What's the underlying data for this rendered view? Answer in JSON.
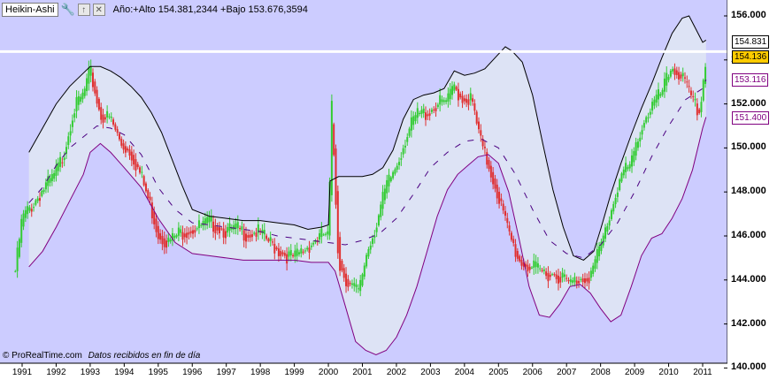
{
  "header": {
    "indicator_name": "Heikin-Ashi",
    "info_text": "Año:+Alto 154.381,2344 +Bajo 153.676,3594"
  },
  "footer": {
    "brand": "© ProRealTime.com",
    "note": "Datos recibidos en fin de día"
  },
  "colors": {
    "plot_background": "#ccccff",
    "band_fill": "#dde3f5",
    "upper_band": "#000000",
    "lower_band": "#800080",
    "middle_band": "#4b0082",
    "candle_up": "#33cc33",
    "candle_down": "#e03030",
    "horizontal_line": "#ffffff",
    "current_price_tag": "#ffcc00"
  },
  "chart_data": {
    "type": "candlestick",
    "title": "Heikin-Ashi",
    "xlabel": "",
    "ylabel": "",
    "x_ticks": [
      "1991",
      "1992",
      "1993",
      "1994",
      "1995",
      "1996",
      "1997",
      "1998",
      "1999",
      "2000",
      "2001",
      "2002",
      "2003",
      "2004",
      "2005",
      "2006",
      "2007",
      "2008",
      "2009",
      "2010",
      "2011"
    ],
    "y_ticks": [
      "156.000",
      "154.000",
      "152.000",
      "150.000",
      "148.000",
      "146.000",
      "144.000",
      "142.000",
      "140.000"
    ],
    "ylim": [
      140000,
      157000
    ],
    "y_scale": "linear",
    "grid": false,
    "horizontal_line": 154381,
    "tags": [
      {
        "label": "154.831",
        "value": 154831,
        "color": "#000000"
      },
      {
        "label": "154.136",
        "value": 154136,
        "color": "#ffcc00"
      },
      {
        "label": "153.116",
        "value": 153116,
        "color": "#800080"
      },
      {
        "label": "151.400",
        "value": 151400,
        "color": "#800080"
      }
    ],
    "price_series": {
      "x": [
        1990.8,
        1991.0,
        1991.3,
        1991.6,
        1991.9,
        1992.2,
        1992.5,
        1992.8,
        1993.0,
        1993.3,
        1993.6,
        1993.9,
        1994.2,
        1994.5,
        1994.8,
        1995.0,
        1995.3,
        1995.6,
        1995.9,
        1996.2,
        1996.5,
        1996.8,
        1997.0,
        1997.3,
        1997.6,
        1997.9,
        1998.2,
        1998.5,
        1998.8,
        1999.0,
        1999.3,
        1999.6,
        1999.9,
        2000.0,
        2000.1,
        2000.3,
        2000.6,
        2000.9,
        2001.1,
        2001.4,
        2001.7,
        2002.0,
        2002.3,
        2002.6,
        2002.9,
        2003.2,
        2003.5,
        2003.7,
        2003.9,
        2004.2,
        2004.5,
        2004.8,
        2005.0,
        2005.3,
        2005.6,
        2005.9,
        2006.2,
        2006.5,
        2006.8,
        2007.1,
        2007.4,
        2007.7,
        2008.0,
        2008.3,
        2008.6,
        2008.9,
        2009.2,
        2009.5,
        2009.8,
        2010.1,
        2010.4,
        2010.7,
        2010.9,
        2011.1
      ],
      "y": [
        144400,
        146800,
        147400,
        148100,
        148600,
        149600,
        151700,
        152400,
        153500,
        151500,
        151300,
        150200,
        149800,
        148700,
        147200,
        146100,
        145700,
        146100,
        146300,
        146400,
        146600,
        146400,
        146200,
        146300,
        146100,
        146200,
        145800,
        145400,
        145100,
        145000,
        145400,
        145800,
        146100,
        145900,
        151800,
        144800,
        143800,
        143400,
        145100,
        146500,
        148200,
        149200,
        150600,
        151500,
        151600,
        152000,
        152100,
        152800,
        152300,
        152200,
        150100,
        148800,
        147800,
        146100,
        144900,
        144600,
        144400,
        144300,
        144200,
        143800,
        144100,
        144200,
        145500,
        147100,
        148800,
        149200,
        151000,
        151900,
        152500,
        153700,
        153200,
        152100,
        151600,
        154100
      ]
    },
    "series": [
      {
        "role": "upper_band",
        "x": [
          1991.2,
          1991.6,
          1992.0,
          1992.4,
          1992.8,
          1993.0,
          1993.3,
          1993.6,
          1993.9,
          1994.2,
          1994.5,
          1994.8,
          1995.1,
          1995.4,
          1995.7,
          1996.0,
          1996.5,
          1997.0,
          1997.5,
          1998.0,
          1998.5,
          1999.0,
          1999.4,
          1999.8,
          2000.0,
          2000.05,
          2000.3,
          2000.7,
          2001.0,
          2001.3,
          2001.6,
          2001.9,
          2002.2,
          2002.5,
          2002.8,
          2003.1,
          2003.4,
          2003.7,
          2004.0,
          2004.3,
          2004.6,
          2004.9,
          2005.2,
          2005.4,
          2005.7,
          2006.0,
          2006.3,
          2006.6,
          2006.9,
          2007.2,
          2007.5,
          2007.8,
          2008.0,
          2008.3,
          2008.6,
          2008.9,
          2009.2,
          2009.5,
          2009.8,
          2010.1,
          2010.4,
          2010.6,
          2010.8,
          2011.0,
          2011.1
        ],
        "y": [
          149800,
          150900,
          152000,
          152800,
          153400,
          153700,
          153700,
          153500,
          153200,
          152800,
          152300,
          151600,
          150700,
          149500,
          148300,
          147200,
          146900,
          146800,
          146700,
          146700,
          146600,
          146500,
          146300,
          146400,
          146500,
          148500,
          148700,
          148700,
          148700,
          148800,
          149100,
          149900,
          151300,
          152200,
          152400,
          152500,
          152700,
          153500,
          153300,
          153400,
          153600,
          154100,
          154600,
          154400,
          153900,
          152400,
          150200,
          148100,
          146400,
          145100,
          144900,
          145300,
          146300,
          147900,
          149300,
          150600,
          151800,
          152900,
          154100,
          155200,
          155900,
          156000,
          155400,
          154800,
          154900
        ]
      },
      {
        "role": "middle_band",
        "x": [
          1991.2,
          1991.6,
          1992.0,
          1992.4,
          1992.8,
          1993.2,
          1993.6,
          1994.0,
          1994.5,
          1995.0,
          1995.5,
          1996.0,
          1996.5,
          1997.0,
          1997.5,
          1998.0,
          1998.5,
          1999.0,
          1999.5,
          2000.0,
          2000.5,
          2001.0,
          2001.5,
          2002.0,
          2002.5,
          2003.0,
          2003.5,
          2004.0,
          2004.5,
          2005.0,
          2005.5,
          2006.0,
          2006.5,
          2007.0,
          2007.5,
          2008.0,
          2008.5,
          2009.0,
          2009.5,
          2010.0,
          2010.5,
          2011.0,
          2011.1
        ],
        "y": [
          147500,
          148200,
          149200,
          150000,
          150500,
          151000,
          150900,
          150600,
          149700,
          148200,
          147200,
          146600,
          146500,
          146400,
          146300,
          146200,
          146000,
          145900,
          145800,
          145700,
          145600,
          145800,
          146100,
          146800,
          147900,
          149100,
          149800,
          150300,
          150400,
          150000,
          148800,
          147200,
          145800,
          145200,
          145000,
          145600,
          146600,
          148000,
          149600,
          151000,
          152200,
          152700,
          153100
        ]
      },
      {
        "role": "lower_band",
        "x": [
          1991.2,
          1991.6,
          1992.0,
          1992.4,
          1992.8,
          1993.0,
          1993.3,
          1993.6,
          1994.0,
          1994.5,
          1995.0,
          1995.5,
          1996.0,
          1996.5,
          1997.0,
          1997.5,
          1998.0,
          1998.5,
          1999.0,
          1999.5,
          2000.0,
          2000.2,
          2000.5,
          2000.8,
          2001.1,
          2001.4,
          2001.7,
          2002.0,
          2002.3,
          2002.6,
          2002.9,
          2003.2,
          2003.5,
          2003.8,
          2004.1,
          2004.4,
          2004.7,
          2005.0,
          2005.3,
          2005.6,
          2005.9,
          2006.2,
          2006.5,
          2006.8,
          2007.1,
          2007.4,
          2007.7,
          2008.0,
          2008.3,
          2008.6,
          2008.9,
          2009.2,
          2009.5,
          2009.8,
          2010.1,
          2010.4,
          2010.7,
          2011.0,
          2011.1
        ],
        "y": [
          144600,
          145300,
          146400,
          147600,
          148800,
          149800,
          150200,
          149800,
          149100,
          148200,
          146800,
          145700,
          145200,
          145100,
          145000,
          144900,
          144900,
          144900,
          144900,
          144800,
          144800,
          144400,
          142800,
          141200,
          140800,
          140600,
          140800,
          141400,
          142400,
          143700,
          145300,
          146900,
          148100,
          148800,
          149200,
          149600,
          149700,
          149300,
          148000,
          145900,
          143700,
          142400,
          142300,
          142900,
          143700,
          143800,
          143400,
          142700,
          142100,
          142400,
          143700,
          145100,
          145900,
          146100,
          146800,
          147700,
          149000,
          150900,
          151400
        ]
      }
    ]
  }
}
